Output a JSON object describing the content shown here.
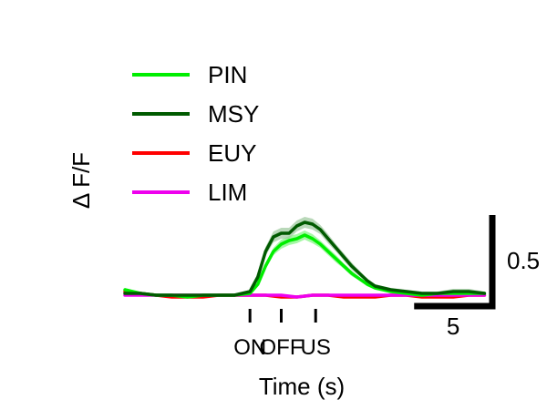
{
  "chart_data": {
    "type": "line",
    "ylabel": "Δ F/F",
    "xlabel": "Time (s)",
    "xlim": [
      -8,
      15.5
    ],
    "ylim": [
      -0.08,
      0.62
    ],
    "grid": false,
    "legend_position": "top-left",
    "events": [
      {
        "label": "ON",
        "x": 0
      },
      {
        "label": "OFF",
        "x": 2
      },
      {
        "label": "US",
        "x": 4.2
      }
    ],
    "scalebar": {
      "x_label": "5",
      "x_length": 5,
      "y_label": "0.5",
      "y_length": 0.5
    },
    "series": [
      {
        "name": "PIN",
        "color": "#00ee00",
        "band_color": "#7ff57f",
        "x": [
          -8,
          -7,
          -6,
          -5,
          -4,
          -3,
          -2,
          -1,
          0,
          0.5,
          1,
          1.5,
          2,
          2.5,
          3,
          3.5,
          4,
          4.5,
          5,
          5.5,
          6,
          6.5,
          7,
          7.5,
          8,
          8.5,
          9,
          10,
          11,
          12,
          13,
          14,
          15
        ],
        "y": [
          0.03,
          0.01,
          0.0,
          0.0,
          -0.01,
          0.0,
          0.0,
          0.0,
          0.01,
          0.06,
          0.16,
          0.24,
          0.28,
          0.3,
          0.31,
          0.33,
          0.31,
          0.28,
          0.24,
          0.2,
          0.16,
          0.12,
          0.09,
          0.06,
          0.04,
          0.03,
          0.02,
          0.01,
          0.0,
          0.01,
          0.01,
          0.01,
          0.01
        ],
        "sem": [
          0.01,
          0.005,
          0.005,
          0.005,
          0.005,
          0.005,
          0.005,
          0.005,
          0.005,
          0.01,
          0.015,
          0.02,
          0.025,
          0.025,
          0.025,
          0.025,
          0.025,
          0.02,
          0.02,
          0.02,
          0.015,
          0.015,
          0.01,
          0.01,
          0.01,
          0.005,
          0.005,
          0.005,
          0.005,
          0.005,
          0.005,
          0.005,
          0.005
        ]
      },
      {
        "name": "MSY",
        "color": "#005a00",
        "band_color": "#9bc89b",
        "x": [
          -8,
          -7,
          -6,
          -5,
          -4,
          -3,
          -2,
          -1,
          0,
          0.5,
          1,
          1.5,
          2,
          2.5,
          3,
          3.5,
          4,
          4.5,
          5,
          5.5,
          6,
          6.5,
          7,
          7.5,
          8,
          8.5,
          9,
          10,
          11,
          12,
          13,
          14,
          15
        ],
        "y": [
          0.01,
          0.01,
          0.0,
          0.0,
          0.0,
          0.0,
          0.0,
          0.0,
          0.02,
          0.1,
          0.24,
          0.32,
          0.34,
          0.34,
          0.38,
          0.4,
          0.39,
          0.36,
          0.31,
          0.26,
          0.21,
          0.16,
          0.12,
          0.08,
          0.05,
          0.04,
          0.03,
          0.02,
          0.01,
          0.01,
          0.02,
          0.02,
          0.01
        ],
        "sem": [
          0.005,
          0.005,
          0.005,
          0.005,
          0.005,
          0.005,
          0.005,
          0.005,
          0.01,
          0.015,
          0.025,
          0.03,
          0.03,
          0.03,
          0.03,
          0.03,
          0.03,
          0.025,
          0.025,
          0.02,
          0.02,
          0.02,
          0.015,
          0.01,
          0.01,
          0.01,
          0.01,
          0.01,
          0.01,
          0.01,
          0.015,
          0.015,
          0.01
        ]
      },
      {
        "name": "EUY",
        "color": "#ff0000",
        "band_color": "#ff9a9a",
        "x": [
          -8,
          -7,
          -6,
          -5,
          -4,
          -3,
          -2,
          -1,
          0,
          1,
          2,
          3,
          4,
          5,
          6,
          7,
          8,
          9,
          10,
          11,
          12,
          13,
          14,
          15
        ],
        "y": [
          0.02,
          0.01,
          0.0,
          -0.01,
          -0.01,
          -0.01,
          0.0,
          0.0,
          0.0,
          0.0,
          -0.01,
          -0.01,
          0.0,
          0.0,
          -0.01,
          -0.01,
          -0.01,
          0.0,
          0.0,
          -0.01,
          -0.01,
          -0.01,
          0.0,
          0.0
        ],
        "sem": [
          0.01,
          0.005,
          0.005,
          0.005,
          0.005,
          0.005,
          0.005,
          0.005,
          0.005,
          0.005,
          0.005,
          0.005,
          0.005,
          0.005,
          0.005,
          0.005,
          0.005,
          0.005,
          0.005,
          0.005,
          0.005,
          0.005,
          0.005,
          0.005
        ]
      },
      {
        "name": "LIM",
        "color": "#ee00ee",
        "band_color": "#f59af5",
        "x": [
          -8,
          -7,
          -6,
          -5,
          -4,
          -3,
          -2,
          -1,
          0,
          1,
          2,
          3,
          4,
          5,
          6,
          7,
          8,
          9,
          10,
          11,
          12,
          13,
          14,
          15
        ],
        "y": [
          0.0,
          0.0,
          0.0,
          0.0,
          0.0,
          0.0,
          0.0,
          0.0,
          0.0,
          0.0,
          0.0,
          -0.01,
          0.0,
          0.0,
          0.0,
          0.0,
          0.0,
          0.0,
          0.0,
          0.0,
          0.0,
          0.0,
          0.0,
          0.0
        ],
        "sem": [
          0.004,
          0.004,
          0.004,
          0.004,
          0.004,
          0.004,
          0.004,
          0.004,
          0.004,
          0.004,
          0.004,
          0.004,
          0.004,
          0.004,
          0.004,
          0.004,
          0.004,
          0.004,
          0.004,
          0.004,
          0.004,
          0.004,
          0.004,
          0.004
        ]
      }
    ]
  }
}
